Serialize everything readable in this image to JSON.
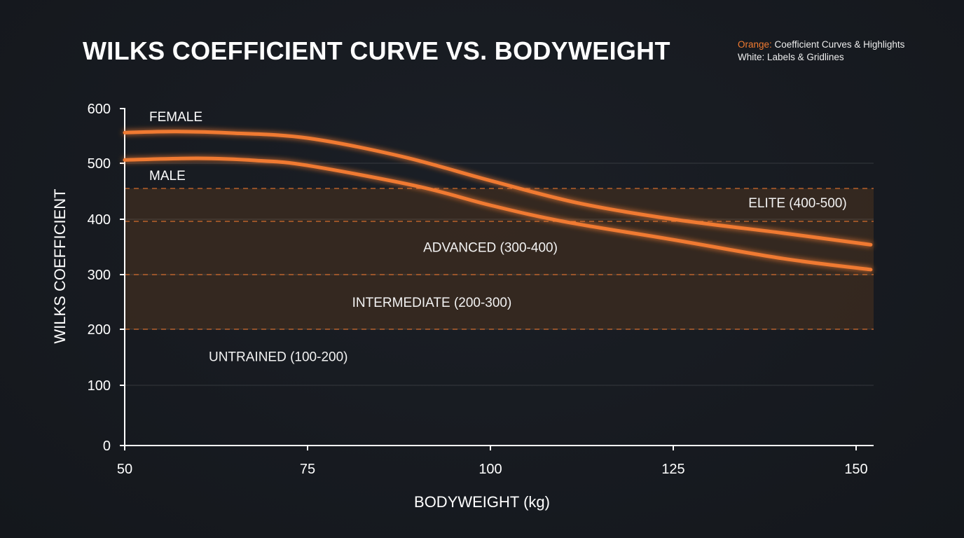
{
  "chart_data": {
    "type": "line",
    "title": "WILKS COEFFICIENT CURVE VS. BODYWEIGHT",
    "legend_note": [
      {
        "key": "Orange:",
        "text": "Coefficient Curves & Highlights"
      },
      {
        "key": "White:",
        "text": "Labels & Gridlines"
      }
    ],
    "xlabel": "BODYWEIGHT (kg)",
    "ylabel": "WILKS COEFFICIENT",
    "xlim": [
      50,
      152
    ],
    "ylim": [
      0,
      600
    ],
    "x_ticks": [
      "50",
      "75",
      "100",
      "125",
      "150"
    ],
    "y_ticks": [
      "0",
      "100",
      "200",
      "300",
      "400",
      "500",
      "600"
    ],
    "grid": true,
    "series": [
      {
        "name": "FEMALE",
        "x": [
          50,
          57,
          65,
          75,
          88,
          100,
          112,
          125,
          140,
          152
        ],
        "y": [
          556,
          558,
          555,
          546,
          512,
          469,
          429,
          400,
          375,
          354
        ]
      },
      {
        "name": "MALE",
        "x": [
          50,
          60,
          68,
          75,
          90,
          100,
          110,
          125,
          140,
          152
        ],
        "y": [
          506,
          509,
          505,
          496,
          459,
          425,
          396,
          363,
          329,
          309
        ]
      }
    ],
    "bands": {
      "range": [
        200,
        455
      ],
      "dashed_lines": [
        200,
        300,
        400,
        455
      ],
      "labels": [
        {
          "text": "ELITE (400-500)",
          "x": 142,
          "y": 430
        },
        {
          "text": "ADVANCED (300-400)",
          "x": 100,
          "y": 350
        },
        {
          "text": "INTERMEDIATE (200-300)",
          "x": 92,
          "y": 250
        },
        {
          "text": "UNTRAINED (100-200)",
          "x": 71,
          "y": 152
        }
      ]
    },
    "colors": {
      "curve": "#f07a30",
      "band": "#3a2a20",
      "text": "#ffffff",
      "background": "#161a20"
    }
  }
}
